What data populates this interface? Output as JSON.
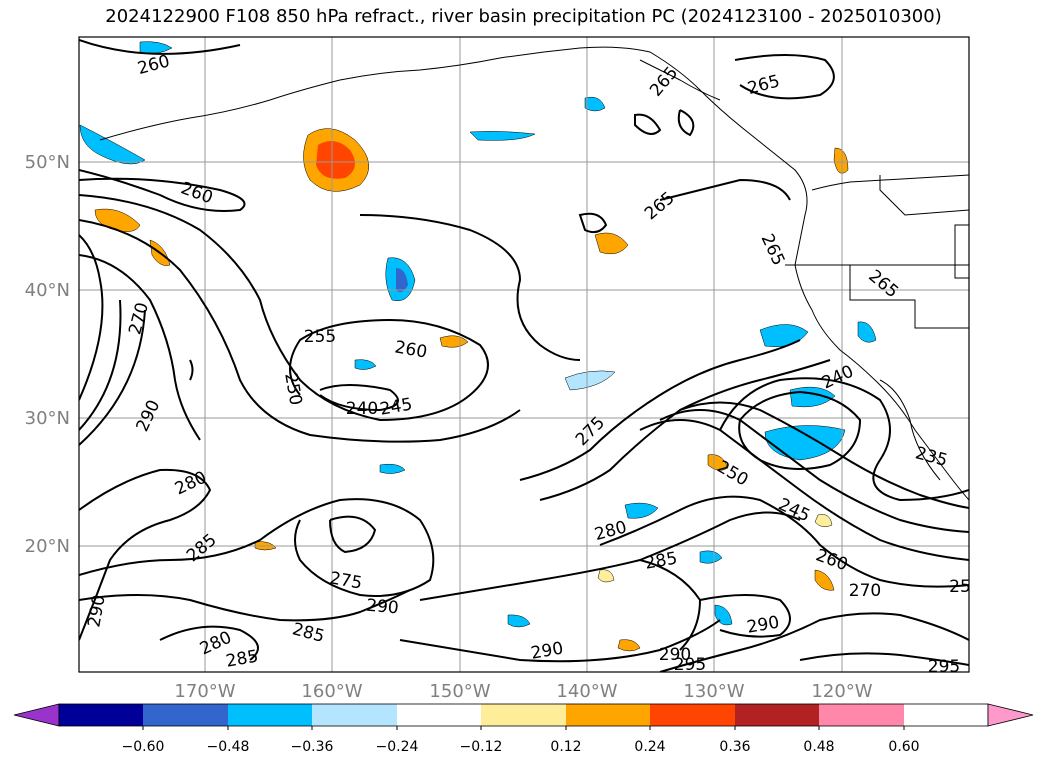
{
  "title": "2024122900 F108 850 hPa refract., river basin precipitation PC (2024123100 - 2025010300)",
  "map": {
    "lat_labels": [
      "50°N",
      "40°N",
      "30°N",
      "20°N"
    ],
    "lon_labels": [
      "170°W",
      "160°W",
      "150°W",
      "140°W",
      "130°W",
      "120°W"
    ],
    "contour_labels": [
      "260",
      "265",
      "265",
      "260",
      "265",
      "265",
      "265",
      "270",
      "255",
      "260",
      "250",
      "240",
      "245",
      "240",
      "290",
      "275",
      "280",
      "235",
      "250",
      "245",
      "280",
      "285",
      "260",
      "270",
      "285",
      "275",
      "290",
      "290",
      "285",
      "280",
      "285",
      "290",
      "290",
      "295",
      "290",
      "295",
      "25"
    ],
    "colors": {
      "gridline": "#999999",
      "axis_text": "#808080"
    }
  },
  "colorbar": {
    "ticks": [
      "−0.60",
      "−0.48",
      "−0.36",
      "−0.24",
      "−0.12",
      "0.12",
      "0.24",
      "0.36",
      "0.48",
      "0.60"
    ],
    "colors": [
      "#9933cc",
      "#000099",
      "#3366cc",
      "#00bfff",
      "#b3e5ff",
      "#ffffff",
      "#ffee99",
      "#ffa500",
      "#ff4500",
      "#b22222",
      "#ff88aa",
      "#ff99cc"
    ]
  }
}
